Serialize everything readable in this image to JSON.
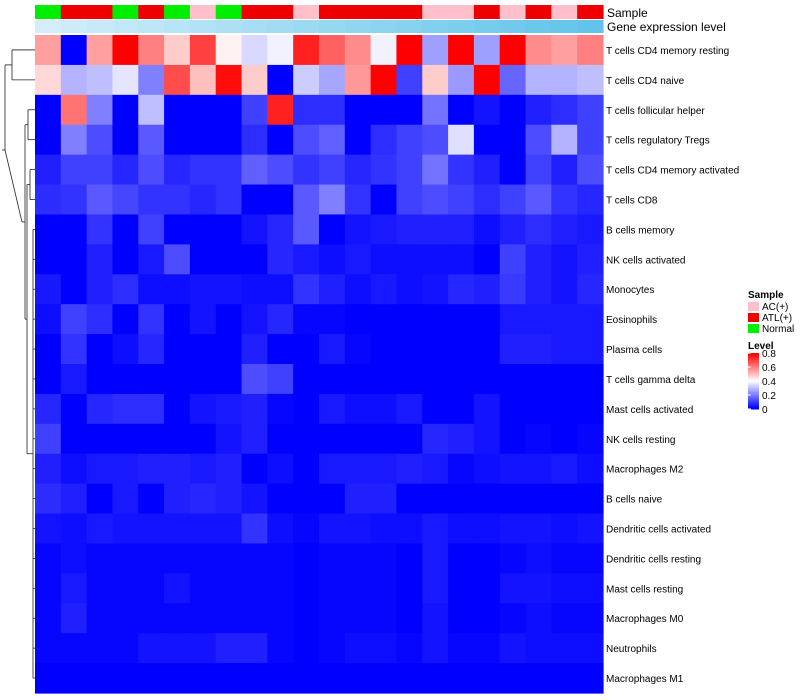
{
  "chart_data": {
    "type": "heatmap",
    "annotation_tracks": [
      "Sample",
      "Gene expression level"
    ],
    "sample_groups": [
      "N",
      "A",
      "A",
      "N",
      "A",
      "N",
      "C",
      "N",
      "A",
      "A",
      "C",
      "A",
      "A",
      "A",
      "A",
      "C",
      "C",
      "A",
      "C",
      "A",
      "C",
      "A"
    ],
    "expression_level": [
      0.12,
      0.16,
      0.2,
      0.24,
      0.28,
      0.32,
      0.36,
      0.4,
      0.44,
      0.48,
      0.52,
      0.56,
      0.6,
      0.64,
      0.68,
      0.72,
      0.76,
      0.8,
      0.84,
      0.88,
      0.92,
      0.96
    ],
    "expression_colors": {
      "low": "#e3f4fb",
      "high": "#5bc2ea"
    },
    "rows": [
      "T cells CD4 memory resting",
      "T cells CD4 naive",
      "T cells follicular helper",
      "T cells regulatory  Tregs",
      "T cells CD4 memory activated",
      "T cells CD8",
      "B cells memory",
      "NK cells activated",
      "Monocytes",
      "Eosinophils",
      "Plasma cells",
      "T cells gamma delta",
      "Mast cells activated",
      "NK cells resting",
      "Macrophages M2",
      "B cells naive",
      "Dendritic cells activated",
      "Dendritic cells resting",
      "Mast cells resting",
      "Macrophages M0",
      "Neutrophils",
      "Macrophages M1"
    ],
    "values": [
      [
        0.55,
        0.0,
        0.55,
        0.8,
        0.6,
        0.48,
        0.7,
        0.42,
        0.34,
        0.38,
        0.75,
        0.65,
        0.58,
        0.38,
        0.8,
        0.25,
        0.8,
        0.25,
        0.8,
        0.58,
        0.55,
        0.6
      ],
      [
        0.46,
        0.28,
        0.3,
        0.36,
        0.2,
        0.68,
        0.5,
        0.78,
        0.48,
        0.0,
        0.32,
        0.26,
        0.56,
        0.8,
        0.1,
        0.48,
        0.24,
        0.8,
        0.16,
        0.28,
        0.28,
        0.3
      ],
      [
        0.0,
        0.62,
        0.2,
        0.0,
        0.3,
        0.0,
        0.0,
        0.0,
        0.1,
        0.75,
        0.07,
        0.07,
        0.0,
        0.0,
        0.0,
        0.18,
        0.0,
        0.03,
        0.0,
        0.05,
        0.07,
        0.1
      ],
      [
        0.0,
        0.2,
        0.12,
        0.0,
        0.14,
        0.0,
        0.0,
        0.0,
        0.07,
        0.0,
        0.12,
        0.15,
        0.0,
        0.07,
        0.1,
        0.12,
        0.35,
        0.0,
        0.0,
        0.12,
        0.28,
        0.1
      ],
      [
        0.05,
        0.1,
        0.1,
        0.06,
        0.12,
        0.06,
        0.08,
        0.08,
        0.15,
        0.12,
        0.08,
        0.1,
        0.06,
        0.08,
        0.1,
        0.18,
        0.08,
        0.05,
        0.0,
        0.1,
        0.05,
        0.12
      ],
      [
        0.07,
        0.08,
        0.14,
        0.11,
        0.08,
        0.08,
        0.06,
        0.08,
        0.0,
        0.0,
        0.14,
        0.2,
        0.08,
        0.0,
        0.1,
        0.12,
        0.1,
        0.07,
        0.1,
        0.14,
        0.08,
        0.06
      ],
      [
        0.0,
        0.0,
        0.08,
        0.0,
        0.1,
        0.0,
        0.0,
        0.0,
        0.03,
        0.06,
        0.14,
        0.0,
        0.03,
        0.04,
        0.05,
        0.05,
        0.05,
        0.02,
        0.05,
        0.07,
        0.05,
        0.04
      ],
      [
        0.0,
        0.0,
        0.05,
        0.0,
        0.04,
        0.12,
        0.0,
        0.0,
        0.0,
        0.06,
        0.04,
        0.02,
        0.04,
        0.02,
        0.02,
        0.02,
        0.02,
        0.0,
        0.1,
        0.05,
        0.03,
        0.05
      ],
      [
        0.04,
        0.0,
        0.05,
        0.07,
        0.02,
        0.02,
        0.03,
        0.03,
        0.02,
        0.02,
        0.08,
        0.05,
        0.02,
        0.04,
        0.02,
        0.03,
        0.06,
        0.05,
        0.09,
        0.05,
        0.03,
        0.06
      ],
      [
        0.02,
        0.1,
        0.07,
        0.0,
        0.08,
        0.0,
        0.03,
        0.0,
        0.03,
        0.06,
        0.01,
        0.01,
        0.0,
        0.0,
        0.0,
        0.0,
        0.0,
        0.0,
        0.04,
        0.04,
        0.04,
        0.04
      ],
      [
        0.0,
        0.08,
        0.0,
        0.02,
        0.06,
        0.0,
        0.0,
        0.0,
        0.05,
        0.0,
        0.0,
        0.04,
        0.01,
        0.0,
        0.0,
        0.0,
        0.0,
        0.0,
        0.05,
        0.05,
        0.04,
        0.04
      ],
      [
        0.0,
        0.04,
        0.0,
        0.0,
        0.0,
        0.0,
        0.0,
        0.0,
        0.12,
        0.1,
        0.0,
        0.0,
        0.0,
        0.0,
        0.0,
        0.0,
        0.0,
        0.0,
        0.0,
        0.0,
        0.0,
        0.0
      ],
      [
        0.06,
        0.0,
        0.06,
        0.07,
        0.07,
        0.0,
        0.03,
        0.04,
        0.05,
        0.01,
        0.0,
        0.04,
        0.02,
        0.02,
        0.04,
        0.0,
        0.0,
        0.03,
        0.0,
        0.0,
        0.0,
        0.0
      ],
      [
        0.1,
        0.0,
        0.0,
        0.0,
        0.0,
        0.0,
        0.0,
        0.03,
        0.05,
        0.0,
        0.0,
        0.0,
        0.0,
        0.0,
        0.0,
        0.06,
        0.05,
        0.03,
        0.0,
        0.01,
        0.0,
        0.01
      ],
      [
        0.05,
        0.02,
        0.04,
        0.04,
        0.05,
        0.05,
        0.04,
        0.05,
        0.0,
        0.02,
        0.0,
        0.04,
        0.04,
        0.04,
        0.05,
        0.04,
        0.01,
        0.02,
        0.03,
        0.03,
        0.04,
        0.02
      ],
      [
        0.07,
        0.05,
        0.0,
        0.04,
        0.0,
        0.05,
        0.06,
        0.05,
        0.03,
        0.0,
        0.0,
        0.0,
        0.05,
        0.05,
        0.0,
        0.0,
        0.0,
        0.0,
        0.0,
        0.0,
        0.0,
        0.0
      ],
      [
        0.03,
        0.02,
        0.04,
        0.03,
        0.03,
        0.03,
        0.03,
        0.03,
        0.08,
        0.02,
        0.01,
        0.03,
        0.03,
        0.02,
        0.02,
        0.04,
        0.02,
        0.02,
        0.03,
        0.03,
        0.02,
        0.03
      ],
      [
        0.01,
        0.02,
        0.01,
        0.01,
        0.01,
        0.01,
        0.01,
        0.01,
        0.01,
        0.01,
        0.0,
        0.01,
        0.01,
        0.01,
        0.0,
        0.04,
        0.0,
        0.0,
        0.01,
        0.02,
        0.01,
        0.01
      ],
      [
        0.01,
        0.04,
        0.01,
        0.01,
        0.01,
        0.03,
        0.01,
        0.01,
        0.01,
        0.01,
        0.0,
        0.01,
        0.01,
        0.01,
        0.0,
        0.04,
        0.0,
        0.0,
        0.03,
        0.03,
        0.02,
        0.02
      ],
      [
        0.01,
        0.05,
        0.01,
        0.01,
        0.01,
        0.01,
        0.01,
        0.01,
        0.01,
        0.01,
        0.0,
        0.01,
        0.01,
        0.01,
        0.0,
        0.03,
        0.0,
        0.0,
        0.01,
        0.02,
        0.01,
        0.01
      ],
      [
        0.01,
        0.01,
        0.01,
        0.01,
        0.03,
        0.03,
        0.03,
        0.05,
        0.05,
        0.01,
        0.0,
        0.01,
        0.02,
        0.02,
        0.01,
        0.03,
        0.01,
        0.01,
        0.03,
        0.02,
        0.02,
        0.02
      ],
      [
        0.0,
        0.0,
        0.0,
        0.0,
        0.0,
        0.0,
        0.0,
        0.0,
        0.0,
        0.0,
        0.0,
        0.0,
        0.0,
        0.0,
        0.0,
        0.0,
        0.0,
        0.0,
        0.0,
        0.0,
        0.0,
        0.0
      ]
    ],
    "color_scale": {
      "min": 0,
      "mid": 0.4,
      "max": 0.8,
      "low": "#0000ff",
      "middle": "#ffffff",
      "high": "#ff0000"
    },
    "legend_sample": {
      "title": "Sample",
      "entries": [
        {
          "key": "C",
          "label": "AC(+)",
          "color": "#ffc0cb"
        },
        {
          "key": "A",
          "label": "ATL(+)",
          "color": "#ee0000"
        },
        {
          "key": "N",
          "label": "Normal",
          "color": "#00ee00"
        }
      ]
    },
    "legend_level": {
      "title": "Level",
      "ticks": [
        0.8,
        0.6,
        0.4,
        0.2,
        0
      ]
    }
  }
}
